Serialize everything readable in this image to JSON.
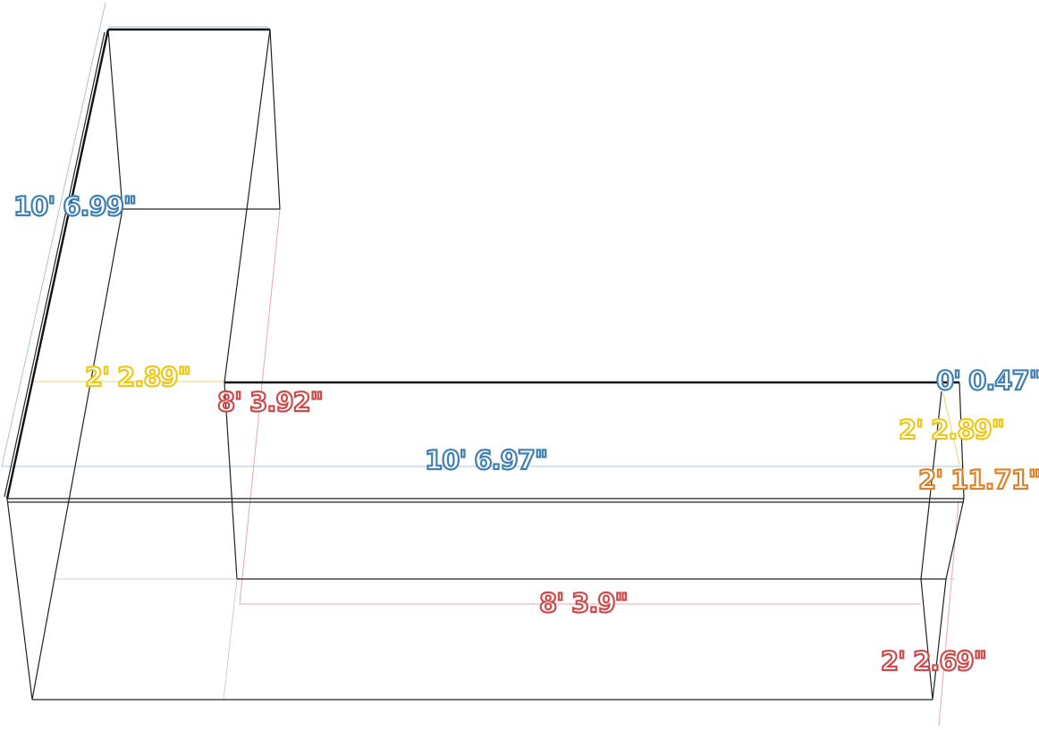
{
  "dimensions": [
    {
      "label": "10' 6.99\""
    },
    {
      "label": "2' 2.89\""
    },
    {
      "label": "8' 3.92\""
    },
    {
      "label": "10' 6.97\""
    },
    {
      "label": "0' 0.47\""
    },
    {
      "label": "2' 2.89\""
    },
    {
      "label": "2' 11.71\""
    },
    {
      "label": "8' 3.9\""
    },
    {
      "label": "2' 2.69\""
    }
  ]
}
